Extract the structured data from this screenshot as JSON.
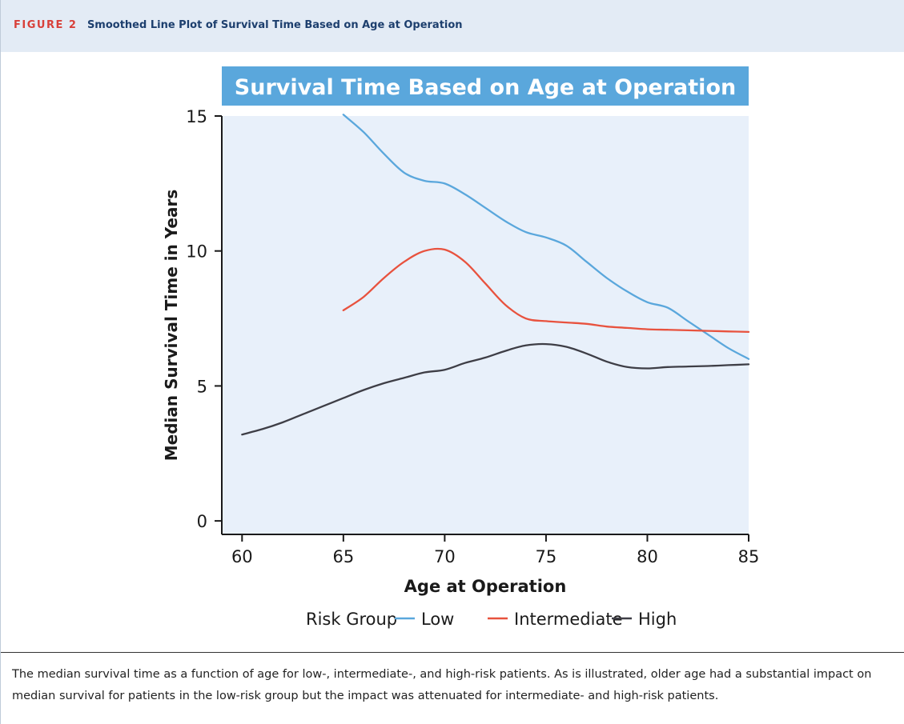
{
  "header": {
    "figure_label": "FIGURE 2",
    "figure_title": "Smoothed Line Plot of Survival Time Based on Age at Operation"
  },
  "caption": "The median survival time as a function of age for low-, intermediate-, and high-risk patients. As is illustrated, older age had a substantial impact on median survival for patients in the low-risk group but the impact was attenuated for intermediate- and high-risk patients.",
  "colors": {
    "plot_background": "#e8f0fa",
    "title_banner": "#5aa7dc",
    "axis": "#1a1a1a"
  },
  "chart_data": {
    "type": "line",
    "title": "Survival Time Based on Age at Operation",
    "xlabel": "Age at Operation",
    "ylabel": "Median Survival Time in Years",
    "xlim": [
      59,
      85
    ],
    "ylim": [
      -0.5,
      15
    ],
    "xticks": [
      60,
      65,
      70,
      75,
      80,
      85
    ],
    "yticks": [
      0,
      5,
      10,
      15
    ],
    "grid": false,
    "legend": {
      "title": "Risk Group",
      "position": "bottom"
    },
    "series": [
      {
        "name": "Low",
        "color": "#5aa7dc",
        "x": [
          65,
          66,
          67,
          68,
          69,
          70,
          71,
          72,
          73,
          74,
          75,
          76,
          77,
          78,
          79,
          80,
          81,
          82,
          83,
          84,
          85
        ],
        "y": [
          15.05,
          14.4,
          13.6,
          12.9,
          12.6,
          12.5,
          12.1,
          11.6,
          11.1,
          10.7,
          10.5,
          10.2,
          9.6,
          9.0,
          8.5,
          8.1,
          7.9,
          7.4,
          6.9,
          6.4,
          6.0
        ]
      },
      {
        "name": "Intermediate",
        "color": "#e8523e",
        "x": [
          65,
          66,
          67,
          68,
          69,
          70,
          71,
          72,
          73,
          74,
          75,
          76,
          77,
          78,
          79,
          80,
          81,
          82,
          83,
          84,
          85
        ],
        "y": [
          7.8,
          8.3,
          9.0,
          9.6,
          10.0,
          10.05,
          9.6,
          8.8,
          8.0,
          7.5,
          7.4,
          7.35,
          7.3,
          7.2,
          7.15,
          7.1,
          7.08,
          7.06,
          7.04,
          7.02,
          7.0
        ]
      },
      {
        "name": "High",
        "color": "#3e3e46",
        "x": [
          60,
          61,
          62,
          63,
          64,
          65,
          66,
          67,
          68,
          69,
          70,
          71,
          72,
          73,
          74,
          75,
          76,
          77,
          78,
          79,
          80,
          81,
          82,
          83,
          84,
          85
        ],
        "y": [
          3.2,
          3.4,
          3.65,
          3.95,
          4.25,
          4.55,
          4.85,
          5.1,
          5.3,
          5.5,
          5.6,
          5.85,
          6.05,
          6.3,
          6.5,
          6.55,
          6.45,
          6.2,
          5.9,
          5.7,
          5.65,
          5.7,
          5.72,
          5.74,
          5.77,
          5.8
        ]
      }
    ]
  }
}
